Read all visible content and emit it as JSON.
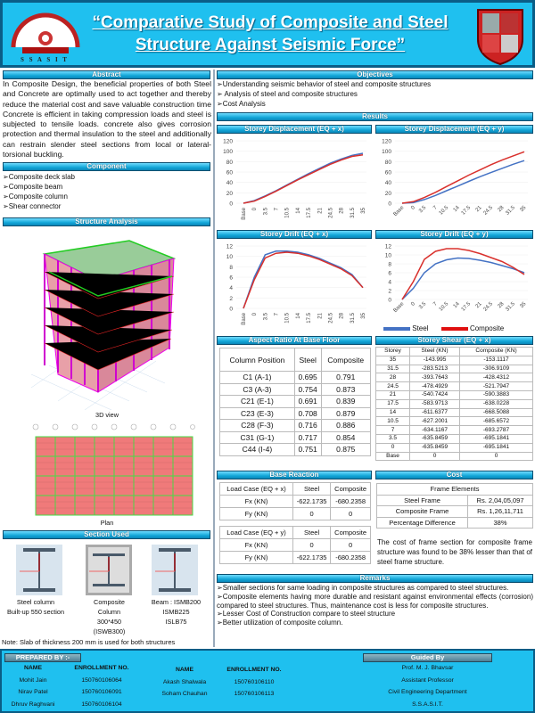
{
  "header": {
    "title_line1": "“Comparative Study of Composite and Steel",
    "title_line2": "Structure Against Seismic Force”",
    "left_logo_text": "S S A S I T"
  },
  "abstract": {
    "heading": "Abstract",
    "text": "In Composite Design, the beneficial properties of both Steel and Concrete are optimally used to act together and thereby reduce the material cost and save valuable construction time Concrete is efficient in taking compression loads and steel is subjected to tensile loads. concrete also gives corrosion protection and thermal insulation to the steel and additionally can restrain slender steel sections from local or lateral- torsional buckling."
  },
  "component": {
    "heading": "Component",
    "items": [
      "Composite deck slab",
      "Composite beam",
      "Composite column",
      "Shear connector"
    ]
  },
  "structure": {
    "heading": "Structure  Analysis",
    "view3d_caption": "3D view",
    "plan_caption": "Plan"
  },
  "section": {
    "heading": "Section Used",
    "captions": [
      [
        "Steel column",
        "Built-up 550  section"
      ],
      [
        "Composite",
        "Column",
        "300*450",
        "(ISWB300)"
      ],
      [
        "Beam : ISMB200",
        "ISMB225",
        "ISLB75"
      ]
    ],
    "note": "Note: Slab of thickness 200 mm is used for both structures"
  },
  "objectives": {
    "heading": "Objectives",
    "items": [
      "Understanding seismic behavior of steel and composite structures",
      " Analysis of steel and composite structures",
      "Cost Analysis"
    ]
  },
  "results": {
    "heading": "Results"
  },
  "chart_data": [
    {
      "type": "line",
      "title": "Storey Displacement (EQ + x)",
      "categories": [
        "Base",
        "0",
        "3.5",
        "7",
        "10.5",
        "14",
        "17.5",
        "21",
        "24.5",
        "28",
        "31.5",
        "35"
      ],
      "ylim": [
        0,
        120
      ],
      "yticks": [
        0,
        20,
        40,
        60,
        80,
        100,
        120
      ],
      "series": [
        {
          "name": "Steel",
          "color": "#4472c4",
          "values": [
            0,
            5,
            14,
            24,
            35,
            46,
            57,
            67,
            77,
            85,
            92,
            96
          ]
        },
        {
          "name": "Composite",
          "color": "#d9302c",
          "values": [
            0,
            4,
            13,
            23,
            34,
            45,
            55,
            65,
            75,
            83,
            90,
            93
          ]
        }
      ]
    },
    {
      "type": "line",
      "title": "Storey Displacement (EQ + y)",
      "categories": [
        "Base",
        "0",
        "3.5",
        "7",
        "10.5",
        "14",
        "17.5",
        "21",
        "24.5",
        "28",
        "31.5",
        "35"
      ],
      "ylim": [
        0,
        120
      ],
      "yticks": [
        0,
        20,
        40,
        60,
        80,
        100,
        120
      ],
      "series": [
        {
          "name": "Steel",
          "color": "#4472c4",
          "values": [
            0,
            1,
            7,
            15,
            24,
            33,
            42,
            51,
            59,
            67,
            75,
            82
          ]
        },
        {
          "name": "Composite",
          "color": "#d9302c",
          "values": [
            0,
            3,
            11,
            21,
            32,
            43,
            54,
            64,
            74,
            83,
            91,
            99
          ]
        }
      ]
    },
    {
      "type": "line",
      "title": "Storey Drift (EQ + x)",
      "categories": [
        "Base",
        "0",
        "3.5",
        "7",
        "10.5",
        "14",
        "17.5",
        "21",
        "24.5",
        "28",
        "31.5",
        "35"
      ],
      "ylim": [
        0,
        12
      ],
      "yticks": [
        0,
        2,
        4,
        6,
        8,
        10,
        12
      ],
      "series": [
        {
          "name": "Steel",
          "color": "#4472c4",
          "values": [
            0,
            6,
            10.3,
            11,
            11,
            10.8,
            10.3,
            9.6,
            8.7,
            7.8,
            6.5,
            4
          ]
        },
        {
          "name": "Composite",
          "color": "#d9302c",
          "values": [
            0,
            5.5,
            9.7,
            10.6,
            10.8,
            10.6,
            10.1,
            9.4,
            8.5,
            7.6,
            6.3,
            4
          ]
        }
      ]
    },
    {
      "type": "line",
      "title": "Storey Drift (EQ + y)",
      "categories": [
        "Base",
        "0",
        "3.5",
        "7",
        "10.5",
        "14",
        "17.5",
        "21",
        "24.5",
        "28",
        "31.5",
        "35"
      ],
      "ylim": [
        0,
        12
      ],
      "yticks": [
        0,
        2,
        4,
        6,
        8,
        10,
        12
      ],
      "legend": "bottom",
      "series": [
        {
          "name": "Steel",
          "color": "#4472c4",
          "values": [
            0,
            2.5,
            6,
            8,
            8.9,
            9.3,
            9.2,
            8.8,
            8.3,
            7.6,
            6.9,
            6
          ]
        },
        {
          "name": "Composite",
          "color": "#d9302c",
          "values": [
            0,
            4,
            9,
            10.8,
            11.4,
            11.4,
            11,
            10.3,
            9.4,
            8.5,
            7.2,
            5.6
          ]
        }
      ]
    }
  ],
  "aspect": {
    "heading": "Aspect Ratio At Base Floor",
    "columns": [
      "Column Position",
      "Steel",
      "Composite"
    ],
    "rows": [
      [
        "C1 (A-1)",
        "0.695",
        "0.791"
      ],
      [
        "C3 (A-3)",
        "0.754",
        "0.873"
      ],
      [
        "C21 (E-1)",
        "0.691",
        "0.839"
      ],
      [
        "C23 (E-3)",
        "0.708",
        "0.879"
      ],
      [
        "C28 (F-3)",
        "0.716",
        "0.886"
      ],
      [
        "C31 (G-1)",
        "0.717",
        "0.854"
      ],
      [
        "C44 (I-4)",
        "0.751",
        "0.875"
      ]
    ]
  },
  "shear": {
    "heading": "Storey Shear (EQ + x)",
    "columns": [
      "Storey",
      "Steel  (KN)",
      "Composite (KN)"
    ],
    "rows": [
      [
        "35",
        "-143.995",
        "-153.1117"
      ],
      [
        "31.5",
        "-283.5213",
        "-306.9109"
      ],
      [
        "28",
        "-393.7643",
        "-428.4312"
      ],
      [
        "24.5",
        "-478.4929",
        "-521.7947"
      ],
      [
        "21",
        "-540.7424",
        "-590.3883"
      ],
      [
        "17.5",
        "-583.9713",
        "-638.0228"
      ],
      [
        "14",
        "-611.6377",
        "-668.5088"
      ],
      [
        "10.5",
        "-627.2001",
        "-685.6572"
      ],
      [
        "7",
        "-634.1167",
        "-693.2787"
      ],
      [
        "3.5",
        "-635.8459",
        "-695.1841"
      ],
      [
        "0",
        "-635.8459",
        "-695.1841"
      ],
      [
        "Base",
        "0",
        "0"
      ]
    ]
  },
  "base_reaction": {
    "heading": "Base Reaction",
    "tables": [
      {
        "columns": [
          "Load Case  (EQ + x)",
          "Steel",
          "Composite"
        ],
        "rows": [
          [
            "Fx (KN)",
            "-622.1735",
            "-680.2358"
          ],
          [
            "Fy (KN)",
            "0",
            "0"
          ]
        ]
      },
      {
        "columns": [
          "Load Case (EQ + y)",
          "Steel",
          "Composite"
        ],
        "rows": [
          [
            "Fx (KN)",
            "0",
            "0"
          ],
          [
            "Fy (KN)",
            "-622.1735",
            "-680.2358"
          ]
        ]
      }
    ]
  },
  "cost": {
    "heading": "Cost",
    "table_title": "Frame Elements",
    "rows": [
      [
        "Steel Frame",
        "Rs. 2,04,05,097"
      ],
      [
        "Composite Frame",
        "Rs. 1,26,11,711"
      ],
      [
        "Percentage Difference",
        "38%"
      ]
    ],
    "text": "The cost of frame section for composite frame structure was found to be 38% lesser than that of steel frame structure."
  },
  "remarks": {
    "heading": "Remarks",
    "items": [
      "Smaller sections for same loading  in composite structures as compared to steel structures.",
      "Composite elements having more durable and resistant against environmental effects (corrosion) compared to steel structures. Thus, maintenance cost is less for composite structures.",
      "Lesser Cost of Construction compare to steel structure",
      "Better utilization of composite column."
    ]
  },
  "footer": {
    "prepared_label": "PREPARED BY :-",
    "guided_label": "Guided By",
    "name_header": "NAME",
    "enroll_header": "ENROLLMENT NO.",
    "group1": [
      [
        "Mohit Jain",
        "150760106064"
      ],
      [
        "Nirav Patel",
        "150760106091"
      ],
      [
        "Dhruv Raghvani",
        "150760106104"
      ]
    ],
    "group2": [
      [
        "Akash Shalwala",
        "150760106110"
      ],
      [
        "Soham Chauhan",
        "150760106113"
      ]
    ],
    "guide": [
      "Prof. M. J. Bhavsar",
      "Assistant Professor",
      "Civil Engineering Department",
      "S.S.A.S.I.T."
    ]
  }
}
